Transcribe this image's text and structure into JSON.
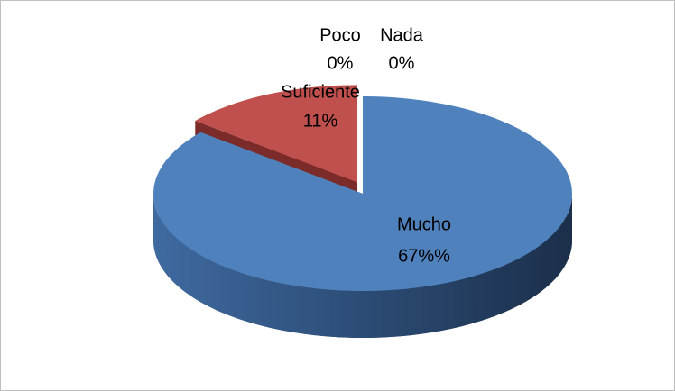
{
  "chart_data": {
    "type": "pie",
    "categories": [
      "Mucho",
      "Suficiente",
      "Poco",
      "Nada"
    ],
    "values": [
      67,
      11,
      0,
      0
    ],
    "value_labels": [
      "67%%",
      "11%",
      "0%",
      "0%"
    ],
    "colors": [
      "#4f81bd",
      "#c0504d",
      "#9bbb59",
      "#8064a2"
    ]
  }
}
